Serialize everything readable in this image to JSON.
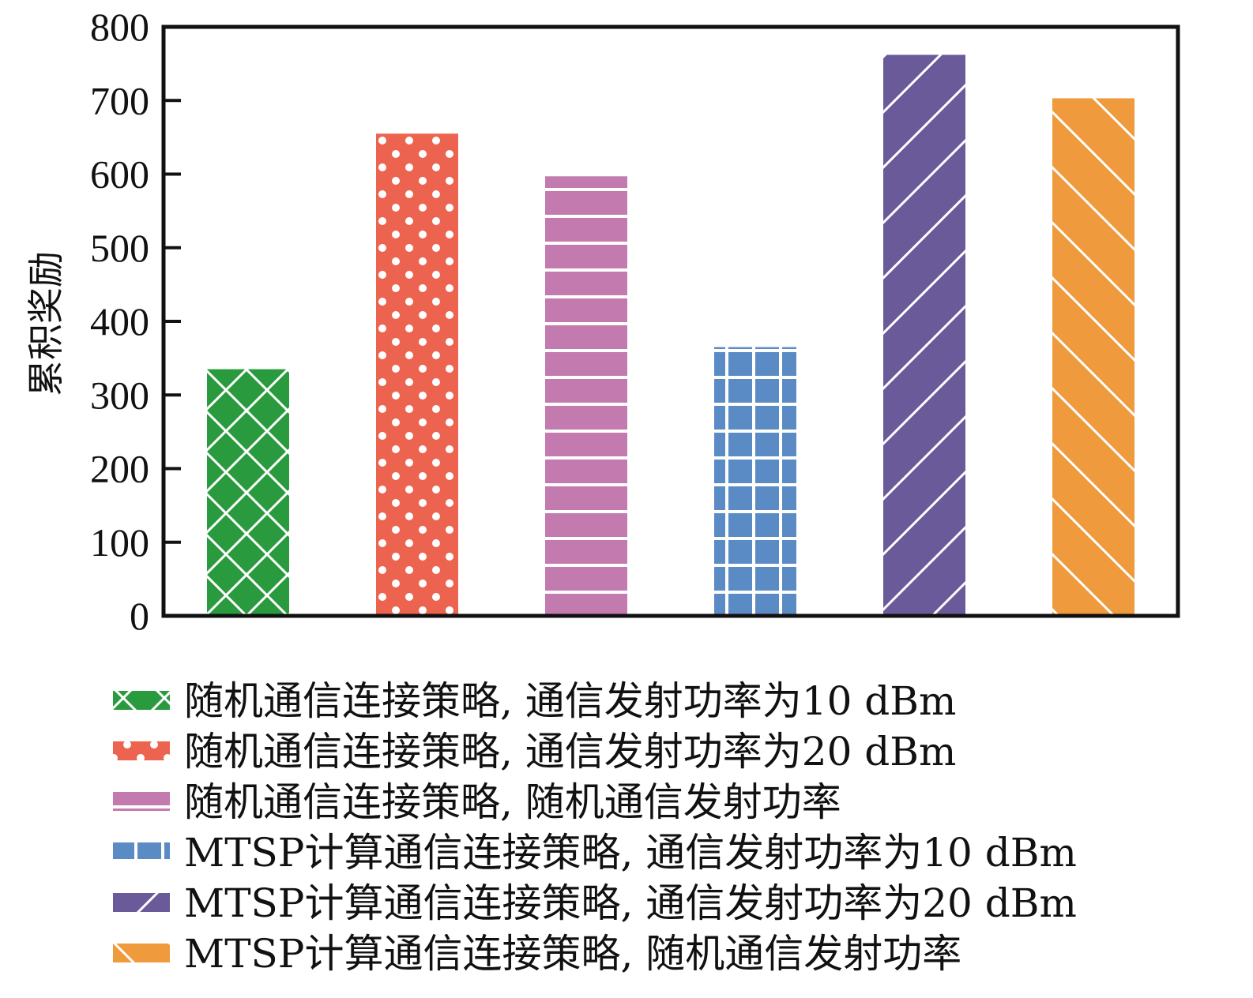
{
  "chart_data": {
    "type": "bar",
    "title": "",
    "xlabel": "",
    "ylabel": "累积奖励",
    "ylim": [
      0,
      800
    ],
    "yticks": [
      0,
      100,
      200,
      300,
      400,
      500,
      600,
      700,
      800
    ],
    "grid": false,
    "legend_position": "bottom",
    "series": [
      {
        "name": "随机通信连接策略, 通信发射功率为10 dBm",
        "value": 335,
        "color": "#2a9a3e",
        "pattern": "crosshatch"
      },
      {
        "name": "随机通信连接策略, 通信发射功率为20 dBm",
        "value": 655,
        "color": "#ec6450",
        "pattern": "dots"
      },
      {
        "name": "随机通信连接策略, 随机通信发射功率",
        "value": 597,
        "color": "#c27aaf",
        "pattern": "horizontal"
      },
      {
        "name": "MTSP计算通信连接策略, 通信发射功率为10 dBm",
        "value": 365,
        "color": "#5a8bc5",
        "pattern": "grid"
      },
      {
        "name": "MTSP计算通信连接策略, 通信发射功率为20 dBm",
        "value": 762,
        "color": "#6a5a9a",
        "pattern": "diag-up"
      },
      {
        "name": "MTSP计算通信连接策略, 随机通信发射功率",
        "value": 703,
        "color": "#ef9a3c",
        "pattern": "diag-down"
      }
    ]
  }
}
